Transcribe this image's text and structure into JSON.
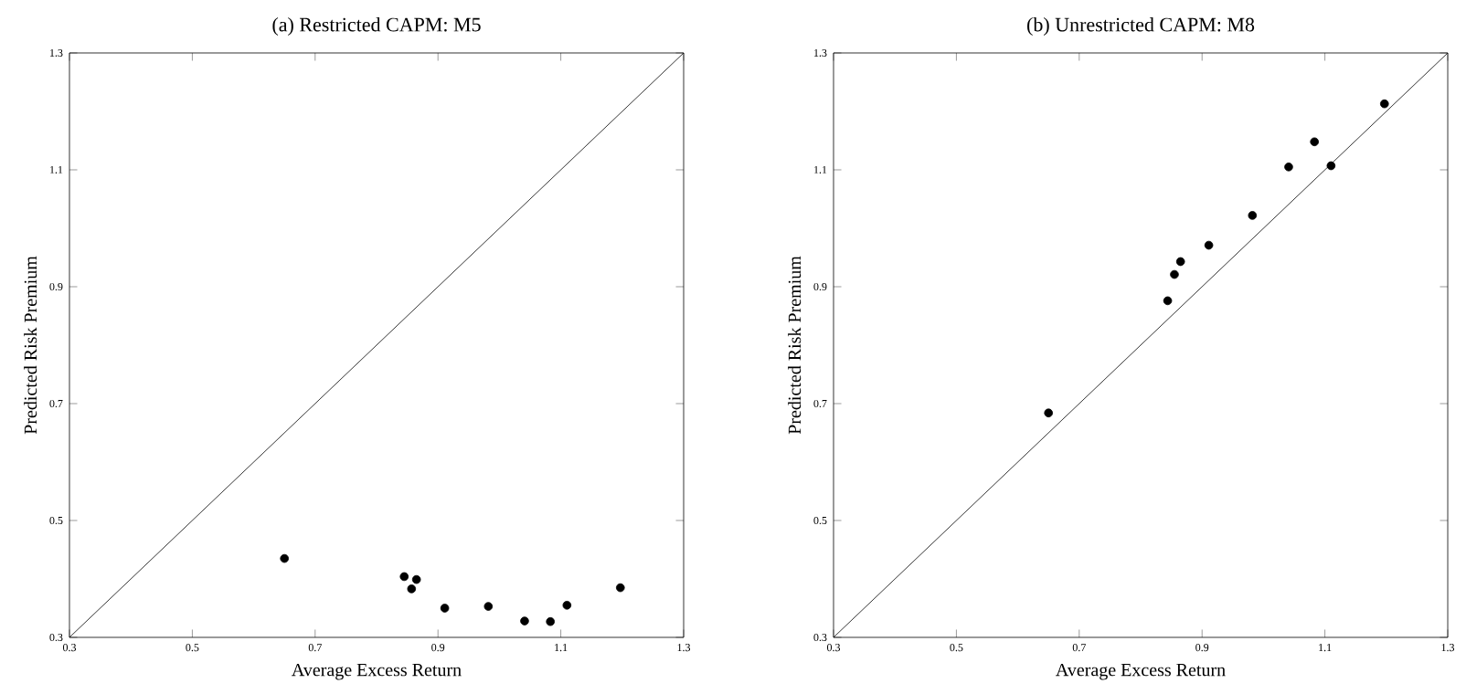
{
  "chart_data": [
    {
      "type": "scatter",
      "title": "(a) Restricted CAPM: M5",
      "xlabel": "Average Excess Return",
      "ylabel": "Predicted Risk Premium",
      "xlim": [
        0.3,
        1.3
      ],
      "ylim": [
        0.3,
        1.3
      ],
      "xticks": [
        0.3,
        0.5,
        0.7,
        0.9,
        1.1,
        1.3
      ],
      "yticks": [
        0.3,
        0.5,
        0.7,
        0.9,
        1.1,
        1.3
      ],
      "grid": false,
      "legend": false,
      "series": [
        {
          "marker": "circle",
          "color": "#000000",
          "x": [
            0.65,
            0.845,
            0.857,
            0.865,
            0.911,
            0.982,
            1.041,
            1.083,
            1.11,
            1.197
          ],
          "values": [
            0.435,
            0.404,
            0.383,
            0.399,
            0.35,
            0.353,
            0.328,
            0.327,
            0.355,
            0.385
          ]
        },
        {
          "type": "line",
          "marker": "none",
          "color": "#000000",
          "x": [
            0.3,
            1.3
          ],
          "values": [
            0.3,
            1.3
          ]
        }
      ]
    },
    {
      "type": "scatter",
      "title": "(b) Unrestricted CAPM: M8",
      "xlabel": "Average Excess Return",
      "ylabel": "Predicted Risk Premium",
      "xlim": [
        0.3,
        1.3
      ],
      "ylim": [
        0.3,
        1.3
      ],
      "xticks": [
        0.3,
        0.5,
        0.7,
        0.9,
        1.1,
        1.3
      ],
      "yticks": [
        0.3,
        0.5,
        0.7,
        0.9,
        1.1,
        1.3
      ],
      "grid": false,
      "legend": false,
      "series": [
        {
          "marker": "circle",
          "color": "#000000",
          "x": [
            0.65,
            0.844,
            0.855,
            0.865,
            0.911,
            0.982,
            1.041,
            1.083,
            1.11,
            1.197
          ],
          "values": [
            0.684,
            0.876,
            0.921,
            0.943,
            0.971,
            1.022,
            1.105,
            1.148,
            1.107,
            1.213
          ]
        },
        {
          "type": "line",
          "marker": "none",
          "color": "#000000",
          "x": [
            0.3,
            1.3
          ],
          "values": [
            0.3,
            1.3
          ]
        }
      ]
    }
  ]
}
